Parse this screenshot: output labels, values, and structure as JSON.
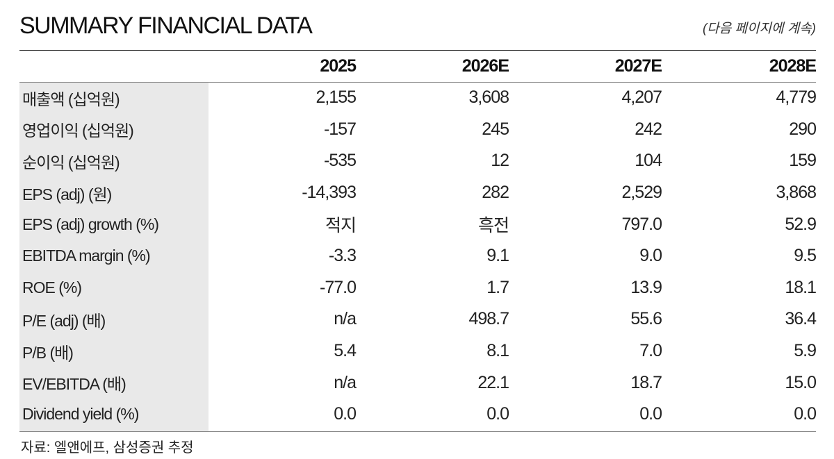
{
  "header": {
    "title": "SUMMARY FINANCIAL DATA",
    "continue_note": "(다음 페이지에 계속)"
  },
  "table": {
    "columns": [
      "",
      "2025",
      "2026E",
      "2027E",
      "2028E"
    ],
    "rows": [
      {
        "label": "매출액 (십억원)",
        "values": [
          "2,155",
          "3,608",
          "4,207",
          "4,779"
        ]
      },
      {
        "label": "영업이익 (십억원)",
        "values": [
          "-157",
          "245",
          "242",
          "290"
        ]
      },
      {
        "label": "순이익 (십억원)",
        "values": [
          "-535",
          "12",
          "104",
          "159"
        ]
      },
      {
        "label": "EPS (adj) (원)",
        "values": [
          "-14,393",
          "282",
          "2,529",
          "3,868"
        ]
      },
      {
        "label": "EPS (adj) growth (%)",
        "values": [
          "적지",
          "흑전",
          "797.0",
          "52.9"
        ]
      },
      {
        "label": "EBITDA margin (%)",
        "values": [
          "-3.3",
          "9.1",
          "9.0",
          "9.5"
        ]
      },
      {
        "label": "ROE (%)",
        "values": [
          "-77.0",
          "1.7",
          "13.9",
          "18.1"
        ]
      },
      {
        "label": "P/E (adj) (배)",
        "values": [
          "n/a",
          "498.7",
          "55.6",
          "36.4"
        ]
      },
      {
        "label": "P/B (배)",
        "values": [
          "5.4",
          "8.1",
          "7.0",
          "5.9"
        ]
      },
      {
        "label": "EV/EBITDA (배)",
        "values": [
          "n/a",
          "22.1",
          "18.7",
          "15.0"
        ]
      },
      {
        "label": "Dividend yield (%)",
        "values": [
          "0.0",
          "0.0",
          "0.0",
          "0.0"
        ]
      }
    ]
  },
  "footer": {
    "source": "자료: 엘앤에프, 삼성증권 추정"
  }
}
